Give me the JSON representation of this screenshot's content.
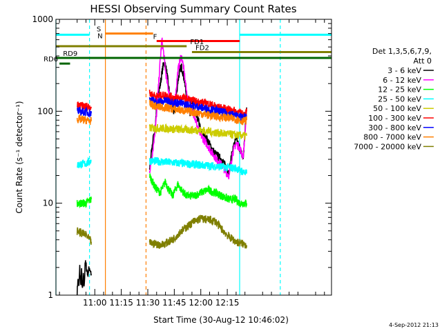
{
  "chart_data": {
    "type": "line",
    "title": "HESSI Observing Summary Count Rates",
    "xlabel": "Start Time (30-Aug-12 10:46:02)",
    "ylabel": "Count Rate (s⁻¹ detector⁻¹)",
    "y_scale": "log",
    "ylim": [
      1,
      1000
    ],
    "y_ticks": [
      1,
      10,
      100,
      1000
    ],
    "y_tick_labels": [
      "1",
      "10",
      "100",
      "1000"
    ],
    "x_range_minutes": [
      -22,
      134
    ],
    "x_ticks_minutes": [
      0,
      15,
      30,
      45,
      60,
      75
    ],
    "x_tick_labels": [
      "11:00",
      "11:15",
      "11:30",
      "11:45",
      "12:00",
      "12:15"
    ],
    "legend_header": [
      "Det 1,3,5,6,7,9,",
      "Att 0"
    ],
    "legend_position": "right",
    "footer_timestamp": "4-Sep-2012 21:13",
    "intervals": [
      {
        "label": "",
        "color": "#00ffff",
        "y": 680,
        "x": [
          -22,
          -3
        ]
      },
      {
        "label": "",
        "color": "#00ffff",
        "y": 680,
        "x": [
          82,
          134
        ]
      },
      {
        "label": "S",
        "color": "#ff7f00",
        "y": 700,
        "x": [
          6,
          33
        ],
        "label_at": 1
      },
      {
        "label": "F",
        "color": "#ff0000",
        "y": 580,
        "x": [
          35,
          82
        ],
        "label_at": 33
      },
      {
        "label": "FD1",
        "color": "#7f7f00",
        "y": 510,
        "x": [
          -22,
          52
        ],
        "label_at": 54
      },
      {
        "label": "FD2",
        "color": "#7f7f00",
        "y": 440,
        "x": [
          55,
          134
        ],
        "label_at": 57
      },
      {
        "label": "RD9",
        "color": "#006400",
        "y": 380,
        "x": [
          -22,
          134
        ],
        "label_at": -18
      },
      {
        "label": "RD6",
        "color": "#006400",
        "y": 330,
        "x": [
          -20,
          -14
        ],
        "label_at": -29
      }
    ],
    "vlines": [
      {
        "x": -22,
        "color": "#00ffff",
        "dash": false
      },
      {
        "x": -3,
        "color": "#00ffff",
        "dash": true
      },
      {
        "x": 6,
        "color": "#ff7f00",
        "dash": false
      },
      {
        "x": 29,
        "color": "#ff7f00",
        "dash": true
      },
      {
        "x": 82,
        "color": "#00ffff",
        "dash": false
      },
      {
        "x": 105,
        "color": "#00ffff",
        "dash": true
      }
    ],
    "extra_labels": [
      {
        "text": "N",
        "color": "#ff7f00",
        "x": 1.5,
        "y": 620
      }
    ],
    "series": [
      {
        "name": "3 - 6 keV",
        "color": "#000000",
        "segments": [
          [
            [
              -10,
              1
            ],
            [
              -9.6,
              1.5
            ],
            [
              -9,
              1.2
            ],
            [
              -8.5,
              2
            ],
            [
              -8,
              1.3
            ],
            [
              -7.5,
              1.8
            ],
            [
              -7,
              1.1
            ],
            [
              -6.5,
              1.6
            ],
            [
              -6,
              1.2
            ],
            [
              -5.5,
              2.3
            ],
            [
              -4,
              1.7
            ],
            [
              -3,
              2
            ],
            [
              -2,
              1.7
            ]
          ],
          [
            [
              31,
              22
            ],
            [
              32,
              35
            ],
            [
              33,
              50
            ],
            [
              34,
              60
            ],
            [
              35,
              110
            ],
            [
              36,
              160
            ],
            [
              37,
              190
            ],
            [
              38,
              260
            ],
            [
              39,
              340
            ],
            [
              40,
              320
            ],
            [
              41,
              240
            ],
            [
              42,
              170
            ],
            [
              43,
              130
            ],
            [
              44,
              110
            ],
            [
              45,
              95
            ],
            [
              46,
              140
            ],
            [
              47,
              210
            ],
            [
              48,
              270
            ],
            [
              49,
              310
            ],
            [
              50,
              260
            ],
            [
              51,
              200
            ],
            [
              52,
              140
            ],
            [
              53,
              110
            ],
            [
              54,
              95
            ],
            [
              55,
              120
            ],
            [
              56,
              110
            ],
            [
              57,
              90
            ],
            [
              58,
              85
            ],
            [
              59,
              75
            ],
            [
              60,
              60
            ],
            [
              62,
              55
            ],
            [
              64,
              48
            ],
            [
              66,
              40
            ],
            [
              68,
              35
            ],
            [
              70,
              32
            ],
            [
              72,
              30
            ],
            [
              74,
              25
            ],
            [
              76,
              22
            ],
            [
              78,
              38
            ],
            [
              80,
              50
            ],
            [
              82,
              40
            ],
            [
              84,
              30
            ],
            [
              86,
              110
            ]
          ]
        ]
      },
      {
        "name": "6 - 12 keV",
        "color": "#ff00ff",
        "segments": [
          [
            [
              31,
              22
            ],
            [
              33,
              40
            ],
            [
              35,
              90
            ],
            [
              36,
              180
            ],
            [
              37,
              350
            ],
            [
              38,
              600
            ],
            [
              39,
              420
            ],
            [
              40,
              280
            ],
            [
              41,
              200
            ],
            [
              42,
              160
            ],
            [
              43,
              130
            ],
            [
              44,
              120
            ],
            [
              45,
              110
            ],
            [
              46,
              170
            ],
            [
              47,
              270
            ],
            [
              48,
              340
            ],
            [
              49,
              400
            ],
            [
              50,
              320
            ],
            [
              51,
              230
            ],
            [
              52,
              160
            ],
            [
              53,
              120
            ],
            [
              54,
              100
            ],
            [
              55,
              110
            ],
            [
              56,
              95
            ],
            [
              57,
              80
            ],
            [
              58,
              70
            ],
            [
              59,
              60
            ],
            [
              60,
              55
            ],
            [
              62,
              48
            ],
            [
              64,
              42
            ],
            [
              66,
              36
            ],
            [
              68,
              32
            ],
            [
              70,
              28
            ],
            [
              72,
              26
            ],
            [
              74,
              22
            ],
            [
              76,
              20
            ],
            [
              78,
              35
            ],
            [
              80,
              45
            ],
            [
              82,
              40
            ],
            [
              84,
              32
            ],
            [
              86,
              100
            ]
          ]
        ]
      },
      {
        "name": "12 - 25 keV",
        "color": "#00ff00",
        "segments": [
          [
            [
              -10,
              10
            ],
            [
              -5,
              10
            ],
            [
              -2,
              11
            ]
          ],
          [
            [
              31,
              20
            ],
            [
              34,
              15
            ],
            [
              37,
              13
            ],
            [
              40,
              17
            ],
            [
              42,
              14
            ],
            [
              44,
              12
            ],
            [
              47,
              16
            ],
            [
              49,
              14
            ],
            [
              52,
              12
            ],
            [
              56,
              12
            ],
            [
              60,
              13
            ],
            [
              64,
              14
            ],
            [
              68,
              13
            ],
            [
              72,
              12
            ],
            [
              76,
              11
            ],
            [
              80,
              11
            ],
            [
              82,
              10
            ],
            [
              84,
              10
            ],
            [
              86,
              10
            ]
          ]
        ]
      },
      {
        "name": "25 - 50 keV",
        "color": "#00ffff",
        "segments": [
          [
            [
              -10,
              26
            ],
            [
              -5,
              27
            ],
            [
              -2,
              29
            ]
          ],
          [
            [
              31,
              29
            ],
            [
              40,
              28
            ],
            [
              50,
              27
            ],
            [
              60,
              26
            ],
            [
              70,
              25
            ],
            [
              80,
              24
            ],
            [
              86,
              21
            ]
          ]
        ]
      },
      {
        "name": "50 - 100 keV",
        "color": "#cccc00",
        "segments": [
          [
            [
              31,
              66
            ],
            [
              40,
              65
            ],
            [
              50,
              63
            ],
            [
              60,
              62
            ],
            [
              70,
              58
            ],
            [
              80,
              55
            ],
            [
              86,
              54
            ]
          ]
        ]
      },
      {
        "name": "100 - 300 keV",
        "color": "#ff0000",
        "segments": [
          [
            [
              -10,
              115
            ],
            [
              -5,
              113
            ],
            [
              -2,
              112
            ]
          ],
          [
            [
              31,
              155
            ],
            [
              35,
              145
            ],
            [
              40,
              150
            ],
            [
              45,
              140
            ],
            [
              50,
              140
            ],
            [
              55,
              130
            ],
            [
              60,
              125
            ],
            [
              65,
              120
            ],
            [
              70,
              110
            ],
            [
              75,
              105
            ],
            [
              80,
              100
            ],
            [
              84,
              92
            ],
            [
              86,
              100
            ]
          ]
        ]
      },
      {
        "name": "300 - 800 keV",
        "color": "#0000ff",
        "segments": [
          [
            [
              -10,
              100
            ],
            [
              -5,
              98
            ],
            [
              -2,
              95
            ]
          ],
          [
            [
              31,
              135
            ],
            [
              35,
              125
            ],
            [
              40,
              130
            ],
            [
              45,
              125
            ],
            [
              50,
              120
            ],
            [
              55,
              115
            ],
            [
              60,
              110
            ],
            [
              65,
              105
            ],
            [
              70,
              100
            ],
            [
              75,
              95
            ],
            [
              80,
              90
            ],
            [
              84,
              84
            ],
            [
              86,
              90
            ]
          ]
        ]
      },
      {
        "name": "800 - 7000 keV",
        "color": "#ff7f00",
        "segments": [
          [
            [
              -10,
              82
            ],
            [
              -5,
              80
            ],
            [
              -2,
              78
            ]
          ],
          [
            [
              31,
              120
            ],
            [
              35,
              112
            ],
            [
              40,
              110
            ],
            [
              45,
              105
            ],
            [
              50,
              102
            ],
            [
              55,
              98
            ],
            [
              60,
              95
            ],
            [
              65,
              90
            ],
            [
              70,
              87
            ],
            [
              75,
              85
            ],
            [
              80,
              82
            ],
            [
              84,
              78
            ],
            [
              86,
              80
            ]
          ]
        ]
      },
      {
        "name": "7000 - 20000 keV",
        "color": "#7f7f00",
        "segments": [
          [
            [
              -10,
              5
            ],
            [
              -5,
              4.5
            ],
            [
              -2,
              3.8
            ]
          ],
          [
            [
              31,
              3.7
            ],
            [
              38,
              3.5
            ],
            [
              44,
              4
            ],
            [
              48,
              4.8
            ],
            [
              52,
              5.5
            ],
            [
              56,
              6.3
            ],
            [
              60,
              6.8
            ],
            [
              64,
              6.6
            ],
            [
              68,
              6.4
            ],
            [
              72,
              5.2
            ],
            [
              76,
              4.3
            ],
            [
              80,
              3.8
            ],
            [
              82,
              3.7
            ],
            [
              86,
              3.5
            ]
          ]
        ]
      }
    ]
  }
}
